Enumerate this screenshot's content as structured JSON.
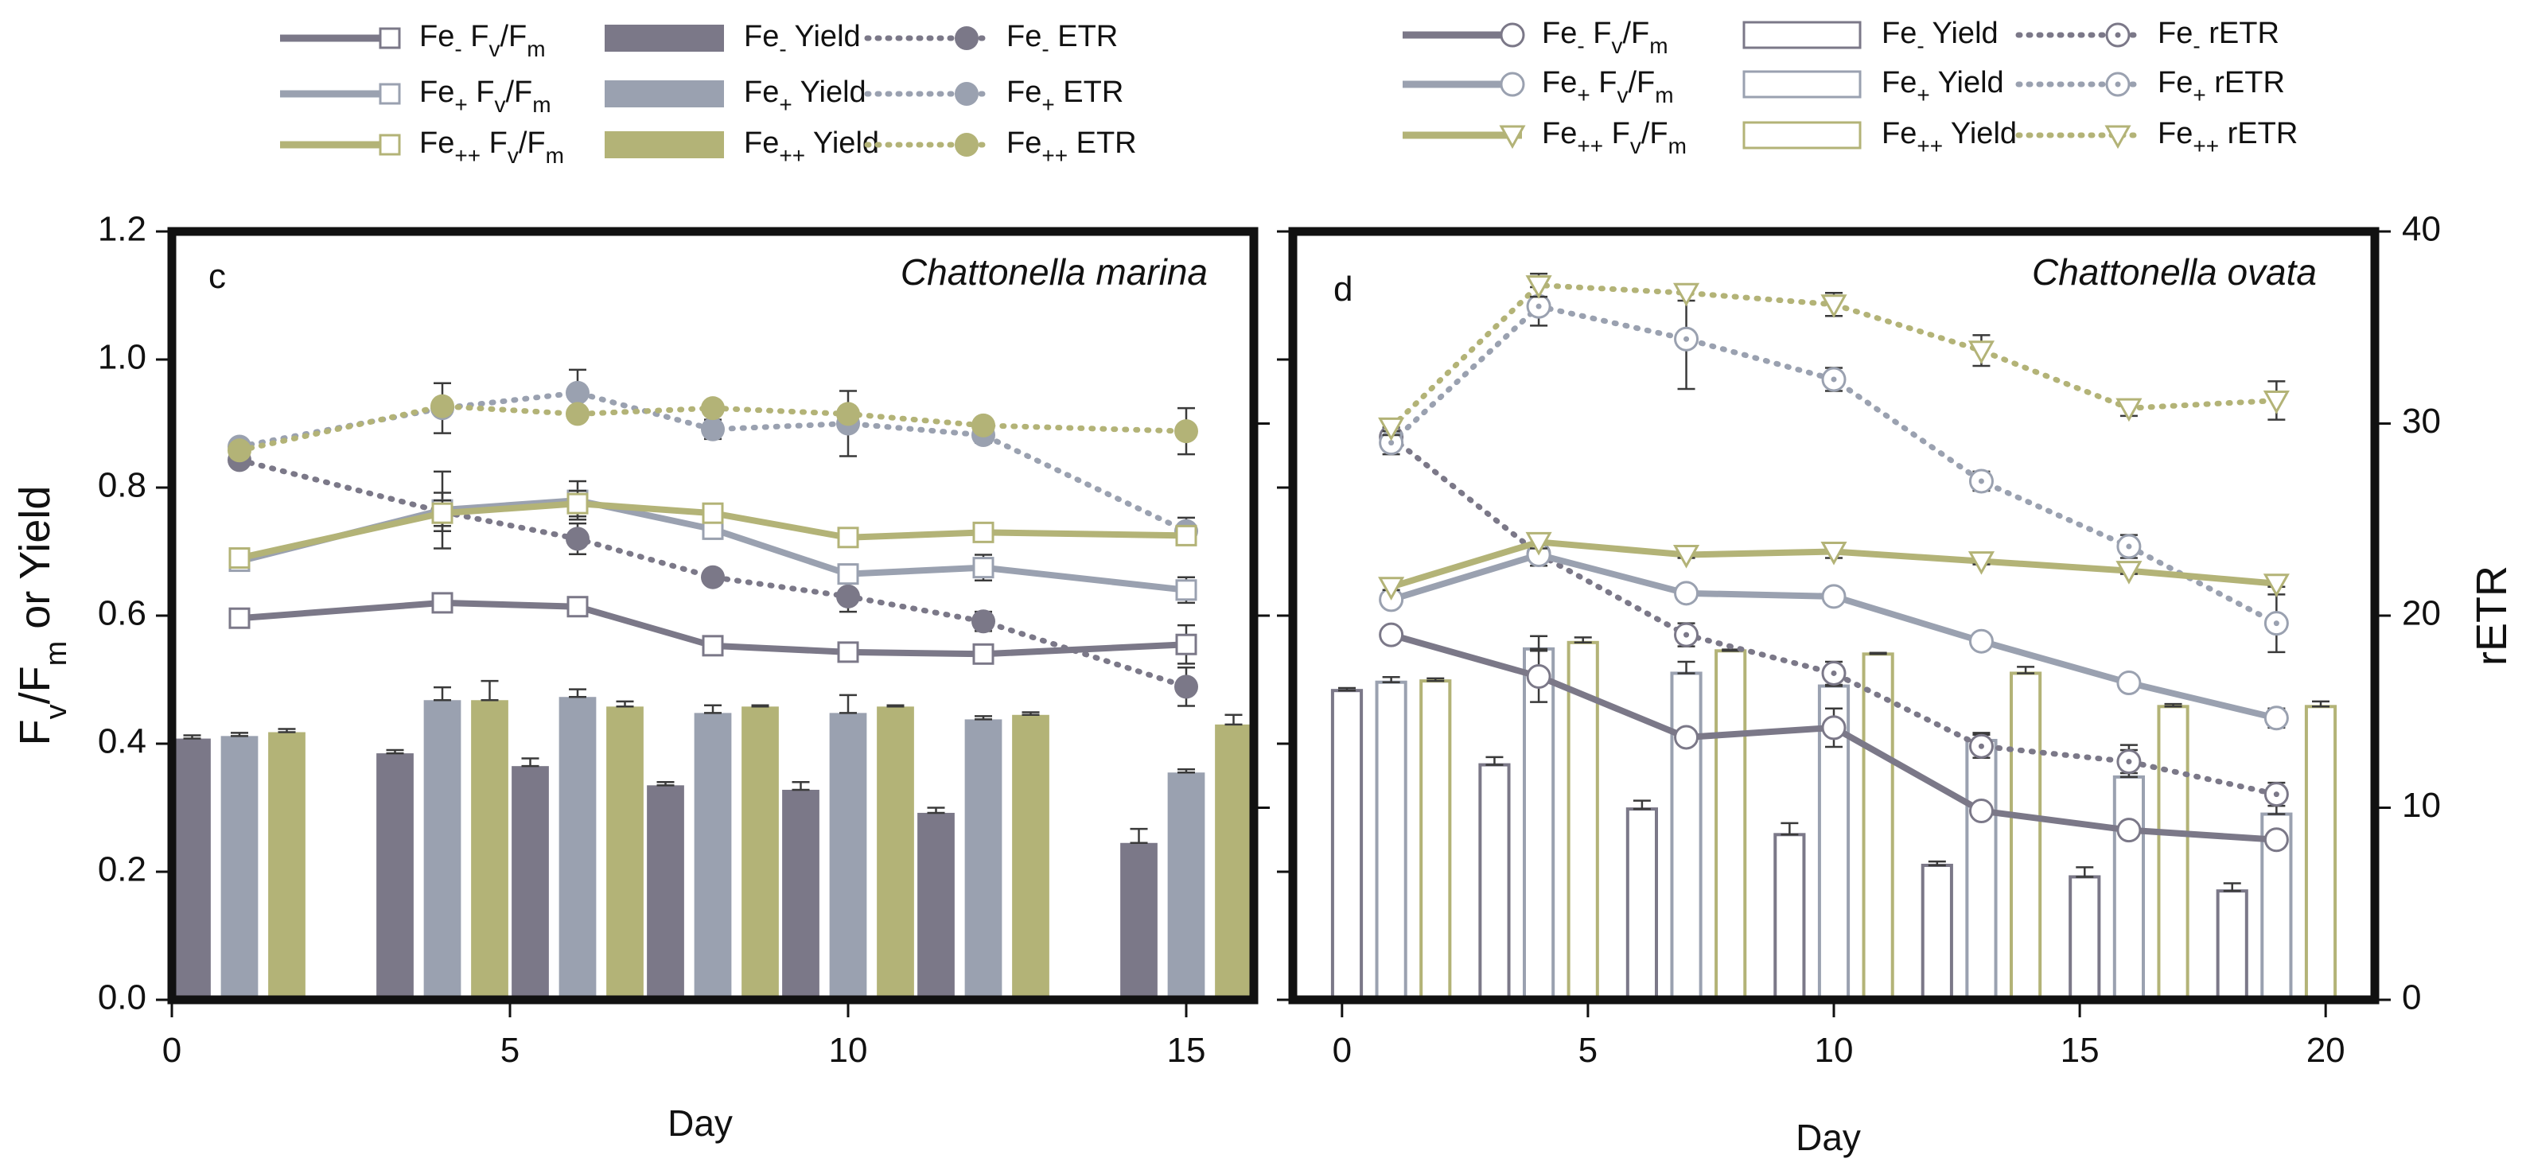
{
  "colors": {
    "fe_minus": "#7b7888",
    "fe_plus": "#9aa1b0",
    "fe_pp": "#b3b377",
    "axis": "#111111",
    "error": "#3a3a3a"
  },
  "legend_left": [
    {
      "prefix": "Fe",
      "sub": "-",
      "suffix": "F",
      "sub2": "v",
      "mid": "/F",
      "sub3": "m",
      "kind": "line-square",
      "series": "fe_minus"
    },
    {
      "prefix": "Fe",
      "sub": "+",
      "suffix": "F",
      "sub2": "v",
      "mid": "/F",
      "sub3": "m",
      "kind": "line-square",
      "series": "fe_plus"
    },
    {
      "prefix": "Fe",
      "sub": "++",
      "suffix": "F",
      "sub2": "v",
      "mid": "/F",
      "sub3": "m",
      "kind": "line-square",
      "series": "fe_pp"
    },
    {
      "prefix": "Fe",
      "sub": "-",
      "suffix": "Yield",
      "kind": "bar-filled",
      "series": "fe_minus"
    },
    {
      "prefix": "Fe",
      "sub": "+",
      "suffix": "Yield",
      "kind": "bar-filled",
      "series": "fe_plus"
    },
    {
      "prefix": "Fe",
      "sub": "++",
      "suffix": "Yield",
      "kind": "bar-filled",
      "series": "fe_pp"
    },
    {
      "prefix": "Fe",
      "sub": "-",
      "suffix": "ETR",
      "kind": "dot-filled",
      "series": "fe_minus"
    },
    {
      "prefix": "Fe",
      "sub": "+",
      "suffix": "ETR",
      "kind": "dot-filled",
      "series": "fe_plus"
    },
    {
      "prefix": "Fe",
      "sub": "++",
      "suffix": "ETR",
      "kind": "dot-filled",
      "series": "fe_pp"
    }
  ],
  "legend_right": [
    {
      "prefix": "Fe",
      "sub": "-",
      "suffix": "F",
      "sub2": "v",
      "mid": "/F",
      "sub3": "m",
      "kind": "line-circle",
      "series": "fe_minus"
    },
    {
      "prefix": "Fe",
      "sub": "+",
      "suffix": "F",
      "sub2": "v",
      "mid": "/F",
      "sub3": "m",
      "kind": "line-circle",
      "series": "fe_plus"
    },
    {
      "prefix": "Fe",
      "sub": "++",
      "suffix": "F",
      "sub2": "v",
      "mid": "/F",
      "sub3": "m",
      "kind": "line-triangle",
      "series": "fe_pp"
    },
    {
      "prefix": "Fe",
      "sub": "-",
      "suffix": "Yield",
      "kind": "bar-open",
      "series": "fe_minus"
    },
    {
      "prefix": "Fe",
      "sub": "+",
      "suffix": "Yield",
      "kind": "bar-open",
      "series": "fe_plus"
    },
    {
      "prefix": "Fe",
      "sub": "++",
      "suffix": "Yield",
      "kind": "bar-open",
      "series": "fe_pp"
    },
    {
      "prefix": "Fe",
      "sub": "-",
      "suffix": "rETR",
      "kind": "dot-circle",
      "series": "fe_minus"
    },
    {
      "prefix": "Fe",
      "sub": "+",
      "suffix": "rETR",
      "kind": "dot-circle",
      "series": "fe_plus"
    },
    {
      "prefix": "Fe",
      "sub": "++",
      "suffix": "rETR",
      "kind": "dot-triangle",
      "series": "fe_pp"
    }
  ],
  "y_left_label": {
    "a": "F",
    "b": "v",
    "c": "/F",
    "d": "m",
    "e": " or Yield"
  },
  "chart_data": [
    {
      "type": "bar+line",
      "panel": "c",
      "title": "Chattonella marina",
      "xlabel": "Day",
      "xlim": [
        0,
        16
      ],
      "xticks": [
        0,
        5,
        10,
        15
      ],
      "ylim": [
        0,
        1.2
      ],
      "yticks": [
        0.0,
        0.2,
        0.4,
        0.6,
        0.8,
        1.0,
        1.2
      ],
      "bar_days": [
        1,
        4,
        6,
        8,
        10,
        12,
        15
      ],
      "bar_width_days": 0.55,
      "bar_offsets_days": [
        -0.7,
        0,
        0.7
      ],
      "etr_axis": {
        "ticks": [],
        "range": [
          0,
          40
        ]
      },
      "series": [
        {
          "name": "Fe- Fv/Fm",
          "group": "fe_minus",
          "kind": "line-square",
          "x": [
            1,
            4,
            6,
            8,
            10,
            12,
            15
          ],
          "y": [
            0.596,
            0.62,
            0.614,
            0.553,
            0.543,
            0.54,
            0.555
          ],
          "err": [
            0.01,
            0.01,
            0.01,
            0.01,
            0.01,
            0.01,
            0.03
          ]
        },
        {
          "name": "Fe+ Fv/Fm",
          "group": "fe_plus",
          "kind": "line-square",
          "x": [
            1,
            4,
            6,
            8,
            10,
            12,
            15
          ],
          "y": [
            0.685,
            0.765,
            0.78,
            0.735,
            0.665,
            0.675,
            0.64
          ],
          "err": [
            0.01,
            0.06,
            0.03,
            0.015,
            0.015,
            0.02,
            0.02
          ]
        },
        {
          "name": "Fe++ Fv/Fm",
          "group": "fe_pp",
          "kind": "line-square",
          "x": [
            1,
            4,
            6,
            8,
            10,
            12,
            15
          ],
          "y": [
            0.69,
            0.76,
            0.775,
            0.76,
            0.722,
            0.73,
            0.725
          ],
          "err": [
            0.01,
            0.02,
            0.02,
            0.01,
            0.01,
            0.01,
            0.01
          ]
        },
        {
          "name": "Fe- Yield",
          "group": "fe_minus",
          "kind": "bar-filled",
          "x": [
            1,
            4,
            6,
            8,
            10,
            12,
            15
          ],
          "y": [
            0.408,
            0.385,
            0.365,
            0.335,
            0.328,
            0.292,
            0.245
          ],
          "err": [
            0.005,
            0.005,
            0.012,
            0.005,
            0.012,
            0.008,
            0.022
          ]
        },
        {
          "name": "Fe+ Yield",
          "group": "fe_plus",
          "kind": "bar-filled",
          "x": [
            1,
            4,
            6,
            8,
            10,
            12,
            15
          ],
          "y": [
            0.412,
            0.468,
            0.473,
            0.448,
            0.448,
            0.438,
            0.355
          ],
          "err": [
            0.005,
            0.02,
            0.012,
            0.012,
            0.028,
            0.005,
            0.005
          ]
        },
        {
          "name": "Fe++ Yield",
          "group": "fe_pp",
          "kind": "bar-filled",
          "x": [
            1,
            4,
            6,
            8,
            10,
            12,
            15
          ],
          "y": [
            0.418,
            0.468,
            0.458,
            0.458,
            0.458,
            0.445,
            0.43
          ],
          "err": [
            0.005,
            0.03,
            0.008,
            0.002,
            0.002,
            0.004,
            0.015
          ]
        },
        {
          "name": "Fe- ETR",
          "group": "fe_minus",
          "kind": "dot-filled",
          "x": [
            1,
            4,
            6,
            8,
            10,
            12,
            15
          ],
          "y": [
            28.1,
            25.4,
            24.0,
            22.0,
            21.0,
            19.7,
            16.3
          ],
          "err": [
            0.3,
            1.0,
            0.8,
            0.3,
            0.8,
            0.5,
            1.0
          ]
        },
        {
          "name": "Fe+ ETR",
          "group": "fe_plus",
          "kind": "dot-filled",
          "x": [
            1,
            4,
            6,
            8,
            10,
            12,
            15
          ],
          "y": [
            28.8,
            30.8,
            31.6,
            29.7,
            30.0,
            29.4,
            24.4
          ],
          "err": [
            0.3,
            1.3,
            1.2,
            0.5,
            1.7,
            0.4,
            0.7
          ]
        },
        {
          "name": "Fe++ ETR",
          "group": "fe_pp",
          "kind": "dot-filled",
          "x": [
            1,
            4,
            6,
            8,
            10,
            12,
            15
          ],
          "y": [
            28.6,
            30.9,
            30.5,
            30.8,
            30.5,
            29.9,
            29.6
          ],
          "err": [
            0.3,
            0.3,
            0.3,
            0.3,
            0.3,
            0.3,
            1.2
          ]
        }
      ]
    },
    {
      "type": "bar+line",
      "panel": "d",
      "title": "Chattonella ovata",
      "xlabel": "Day",
      "ylabel_right": "rETR",
      "xlim": [
        -1,
        21
      ],
      "xticks": [
        0,
        5,
        10,
        15,
        20
      ],
      "ylim": [
        0,
        1.2
      ],
      "y2lim": [
        0,
        40
      ],
      "y2ticks": [
        0,
        10,
        20,
        30,
        40
      ],
      "bar_days": [
        1,
        4,
        7,
        10,
        13,
        16,
        19
      ],
      "bar_width_days": 0.65,
      "bar_offsets_days": [
        -0.9,
        0,
        0.9
      ],
      "series": [
        {
          "name": "Fe- Fv/Fm",
          "group": "fe_minus",
          "kind": "line-circle",
          "x": [
            1,
            4,
            7,
            10,
            13,
            16,
            19
          ],
          "y": [
            0.57,
            0.505,
            0.41,
            0.425,
            0.295,
            0.265,
            0.25
          ],
          "err": [
            0.005,
            0.04,
            0.005,
            0.03,
            0.005,
            0.005,
            0.005
          ]
        },
        {
          "name": "Fe+ Fv/Fm",
          "group": "fe_plus",
          "kind": "line-circle",
          "x": [
            1,
            4,
            7,
            10,
            13,
            16,
            19
          ],
          "y": [
            0.625,
            0.695,
            0.635,
            0.63,
            0.56,
            0.495,
            0.44
          ],
          "err": [
            0.005,
            0.01,
            0.005,
            0.005,
            0.005,
            0.005,
            0.015
          ]
        },
        {
          "name": "Fe++ Fv/Fm",
          "group": "fe_pp",
          "kind": "line-triangle",
          "x": [
            1,
            4,
            7,
            10,
            13,
            16,
            19
          ],
          "y": [
            0.645,
            0.715,
            0.695,
            0.7,
            0.685,
            0.67,
            0.65
          ],
          "err": [
            0.005,
            0.01,
            0.005,
            0.01,
            0.005,
            0.005,
            0.005
          ]
        },
        {
          "name": "Fe- Yield",
          "group": "fe_minus",
          "kind": "bar-open",
          "x": [
            1,
            4,
            7,
            10,
            13,
            16,
            19
          ],
          "y": [
            0.483,
            0.367,
            0.298,
            0.258,
            0.21,
            0.192,
            0.17
          ],
          "err": [
            0.004,
            0.012,
            0.013,
            0.018,
            0.006,
            0.015,
            0.012
          ]
        },
        {
          "name": "Fe+ Yield",
          "group": "fe_plus",
          "kind": "bar-open",
          "x": [
            1,
            4,
            7,
            10,
            13,
            16,
            19
          ],
          "y": [
            0.496,
            0.548,
            0.51,
            0.49,
            0.405,
            0.348,
            0.29
          ],
          "err": [
            0.008,
            0.02,
            0.018,
            0.008,
            0.012,
            0.05,
            0.03
          ]
        },
        {
          "name": "Fe++ Yield",
          "group": "fe_pp",
          "kind": "bar-open",
          "x": [
            1,
            4,
            7,
            10,
            13,
            16,
            19
          ],
          "y": [
            0.498,
            0.558,
            0.545,
            0.54,
            0.51,
            0.458,
            0.458
          ],
          "err": [
            0.004,
            0.008,
            0.002,
            0.002,
            0.01,
            0.004,
            0.008
          ]
        },
        {
          "name": "Fe- rETR",
          "group": "fe_minus",
          "kind": "dot-circle",
          "x": [
            1,
            4,
            7,
            10,
            13,
            16,
            19
          ],
          "y": [
            29.3,
            23.2,
            19.0,
            17.0,
            13.2,
            12.4,
            10.7
          ],
          "err": [
            0.5,
            0.6,
            0.6,
            0.6,
            0.6,
            0.6,
            0.6
          ]
        },
        {
          "name": "Fe+ rETR",
          "group": "fe_plus",
          "kind": "dot-circle",
          "x": [
            1,
            4,
            7,
            10,
            13,
            16,
            19
          ],
          "y": [
            29.0,
            36.1,
            34.4,
            32.3,
            27.0,
            23.6,
            19.6
          ],
          "err": [
            0.6,
            1.0,
            2.6,
            0.6,
            0.5,
            0.6,
            1.5
          ]
        },
        {
          "name": "Fe++ rETR",
          "group": "fe_pp",
          "kind": "dot-triangle",
          "x": [
            1,
            4,
            7,
            10,
            13,
            16,
            19
          ],
          "y": [
            29.8,
            37.2,
            36.8,
            36.2,
            33.8,
            30.8,
            31.2
          ],
          "err": [
            0.4,
            0.6,
            0.4,
            0.6,
            0.8,
            0.4,
            1.0
          ]
        }
      ]
    }
  ]
}
